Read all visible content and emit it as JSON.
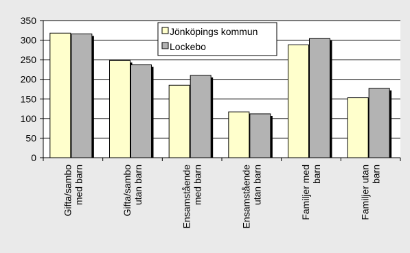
{
  "chart_data": {
    "type": "bar",
    "title": "",
    "xlabel": "",
    "ylabel": "",
    "ylim": [
      0,
      350
    ],
    "yticks": [
      0,
      50,
      100,
      150,
      200,
      250,
      300,
      350
    ],
    "grid": "horizontal",
    "legend_position": "top-center",
    "categories": [
      [
        "Gifta/sambo",
        "med barn"
      ],
      [
        "Gifta/sambo",
        "utan barn"
      ],
      [
        "Ensamstående",
        "med barn"
      ],
      [
        "Ensamstående",
        "utan barn"
      ],
      [
        "Familjer med",
        "barn"
      ],
      [
        "Familjer utan",
        "barn"
      ]
    ],
    "series": [
      {
        "name": "Jönköpings kommun",
        "color": "#ffffcc",
        "values": [
          318,
          248,
          185,
          117,
          288,
          153
        ]
      },
      {
        "name": "Lockebo",
        "color": "#b3b3b3",
        "values": [
          316,
          237,
          210,
          112,
          304,
          177
        ]
      }
    ]
  }
}
